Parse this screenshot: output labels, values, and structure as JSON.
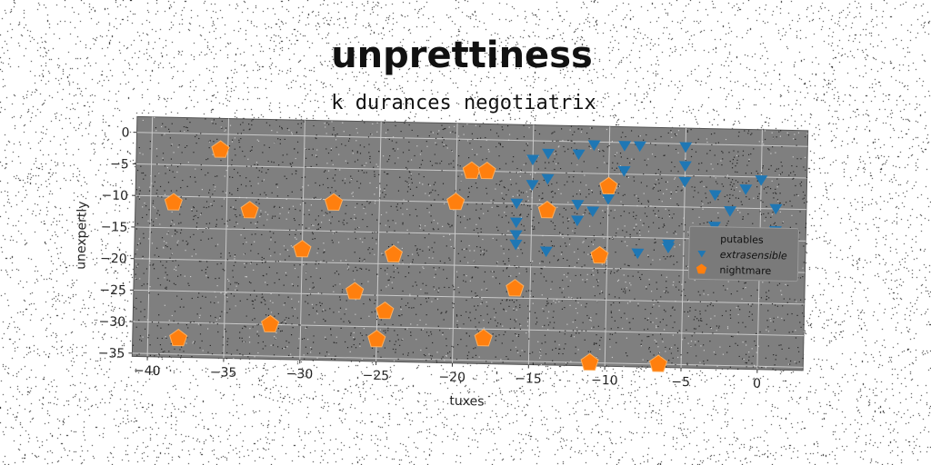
{
  "chart_data": {
    "type": "scatter",
    "title": "unprettiness",
    "subtitle": "k durances negotiatrix",
    "xlabel": "tuxes",
    "ylabel": "unexpertly",
    "xlim": [
      -41,
      3
    ],
    "ylim": [
      -35.5,
      2.5
    ],
    "xticks": [
      -40,
      -35,
      -30,
      -25,
      -20,
      -15,
      -10,
      -5,
      0
    ],
    "yticks": [
      0,
      -5,
      -10,
      -15,
      -20,
      -25,
      -30,
      -35
    ],
    "grid": true,
    "legend_position": "center-right",
    "plot_background": "#7f7f7f",
    "series": [
      {
        "name": "putables",
        "marker": "none",
        "color": "#1f77b4",
        "points": []
      },
      {
        "name": "extrasensible",
        "marker": "triangle-down",
        "color": "#1f77b4",
        "points": [
          [
            -15,
            -3
          ],
          [
            -14,
            -2
          ],
          [
            -12,
            -2
          ],
          [
            -11,
            -0.5
          ],
          [
            -9,
            -0.5
          ],
          [
            -8,
            -0.5
          ],
          [
            -5,
            -0.5
          ],
          [
            -5,
            -3.5
          ],
          [
            -5,
            -6
          ],
          [
            -9,
            -4.5
          ],
          [
            -15,
            -7
          ],
          [
            -14,
            -6
          ],
          [
            -16,
            -10
          ],
          [
            -12,
            -10
          ],
          [
            -11,
            -11
          ],
          [
            -12,
            -12.5
          ],
          [
            -10,
            -9
          ],
          [
            -16,
            -13
          ],
          [
            -16,
            -15
          ],
          [
            -16,
            -16.5
          ],
          [
            -14,
            -17.5
          ],
          [
            -8,
            -17.5
          ],
          [
            -6,
            -16
          ],
          [
            -6,
            -16.5
          ],
          [
            -3,
            -8
          ],
          [
            -2,
            -10.5
          ],
          [
            -1,
            -7
          ],
          [
            0,
            -5.5
          ],
          [
            1,
            -10
          ],
          [
            1,
            -13.5
          ],
          [
            -3,
            -13
          ]
        ]
      },
      {
        "name": "nightmare",
        "marker": "pentagon",
        "color": "#ff7f0e",
        "points": [
          [
            -35.5,
            -2.5
          ],
          [
            -38.5,
            -11
          ],
          [
            -33.5,
            -12
          ],
          [
            -28,
            -10.5
          ],
          [
            -30,
            -18
          ],
          [
            -24,
            -18.5
          ],
          [
            -26.5,
            -24.5
          ],
          [
            -24.5,
            -27.5
          ],
          [
            -32,
            -30
          ],
          [
            -38,
            -32.5
          ],
          [
            -25,
            -32
          ],
          [
            -20,
            -10
          ],
          [
            -19,
            -5
          ],
          [
            -18,
            -5
          ],
          [
            -14,
            -11
          ],
          [
            -10,
            -7
          ],
          [
            -10.5,
            -18
          ],
          [
            -16,
            -23.5
          ],
          [
            -18,
            -31.5
          ],
          [
            -11,
            -35
          ],
          [
            -6.5,
            -35
          ]
        ]
      }
    ]
  }
}
